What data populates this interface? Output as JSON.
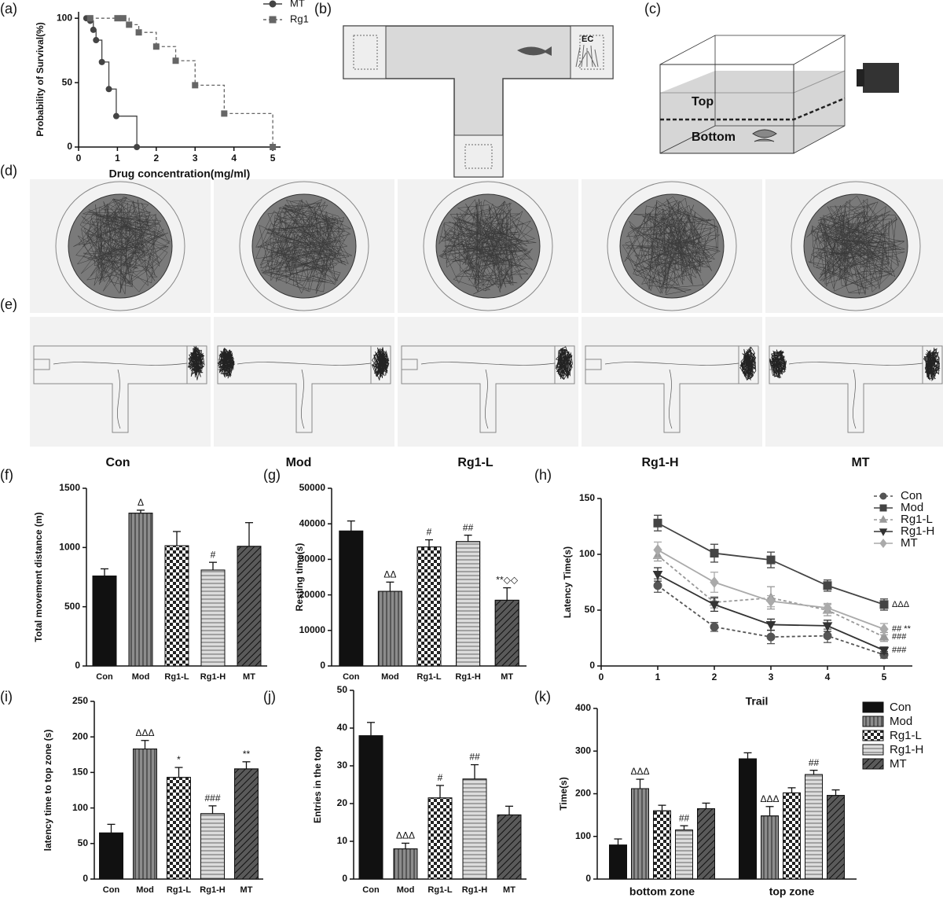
{
  "panels": {
    "b": "(b)",
    "c": "(c)",
    "d": "(d)",
    "e": "(e)"
  },
  "maze_label": "EC",
  "tank_labels": [
    "Top",
    "Bottom"
  ],
  "groups": [
    "Con",
    "Mod",
    "Rg1-L",
    "Rg1-H",
    "MT"
  ],
  "chart_data": [
    {
      "label": "(a)",
      "type": "line",
      "step": true,
      "xlabel": "Drug concentration(mg/ml)",
      "ylabel": "Probability of Survival(%)",
      "xlim": [
        0,
        5.2
      ],
      "xticks": [
        0,
        1,
        2,
        3,
        4,
        5
      ],
      "ylim": [
        0,
        105
      ],
      "yticks": [
        0,
        50,
        100
      ],
      "legend": "top-right",
      "series": [
        {
          "name": "MT",
          "color": "#444444",
          "marker": "circle",
          "dashed": false,
          "x": [
            0.2,
            0.3,
            0.38,
            0.45,
            0.6,
            0.78,
            0.97,
            1.5
          ],
          "values": [
            100,
            98,
            91,
            83,
            66,
            45,
            24,
            0
          ]
        },
        {
          "name": "Rg1",
          "color": "#666666",
          "marker": "square",
          "dashed": true,
          "x": [
            0.3,
            1.0,
            1.15,
            1.3,
            1.55,
            2.0,
            2.5,
            3.0,
            3.75,
            5.0
          ],
          "values": [
            100,
            100,
            100,
            95,
            89,
            78,
            67,
            48,
            26,
            0
          ]
        }
      ]
    },
    {
      "label": "(f)",
      "type": "bar",
      "ylabel": "Total movement distance (m)",
      "ylim": [
        0,
        1500
      ],
      "yticks": [
        0,
        500,
        1000,
        1500
      ],
      "categories": [
        "Con",
        "Mod",
        "Rg1-L",
        "Rg1-H",
        "MT"
      ],
      "values": [
        760,
        1290,
        1015,
        810,
        1010
      ],
      "errors": [
        60,
        25,
        120,
        65,
        200
      ],
      "colors": [
        "#111111",
        "#8c8c8c",
        "#ffffff",
        "#dcdcdc",
        "#5a5a5a"
      ],
      "annotations": [
        {
          "index": 1,
          "text": "Δ"
        },
        {
          "index": 3,
          "text": "#"
        }
      ]
    },
    {
      "label": "(g)",
      "type": "bar",
      "ylabel": "Resting time(s)",
      "ylim": [
        0,
        50000
      ],
      "yticks": [
        0,
        10000,
        20000,
        30000,
        40000,
        50000
      ],
      "categories": [
        "Con",
        "Mod",
        "Rg1-L",
        "Rg1-H",
        "MT"
      ],
      "values": [
        38000,
        21000,
        33500,
        35000,
        18500
      ],
      "errors": [
        2800,
        2600,
        2000,
        1800,
        3500
      ],
      "colors": [
        "#111111",
        "#8c8c8c",
        "#ffffff",
        "#dcdcdc",
        "#5a5a5a"
      ],
      "annotations": [
        {
          "index": 1,
          "text": "ΔΔ"
        },
        {
          "index": 2,
          "text": "#"
        },
        {
          "index": 3,
          "text": "##"
        },
        {
          "index": 4,
          "text": "**◇◇"
        }
      ]
    },
    {
      "label": "(h)",
      "type": "line",
      "step": false,
      "xlabel": "Trail",
      "ylabel": "Latency Time(s)",
      "xlim": [
        0,
        5.5
      ],
      "xticks": [
        0,
        1,
        2,
        3,
        4,
        5
      ],
      "ylim": [
        0,
        150
      ],
      "yticks": [
        0,
        50,
        100,
        150
      ],
      "legend": "top-right",
      "x": [
        1,
        2,
        3,
        4,
        5
      ],
      "series": [
        {
          "name": "Con",
          "color": "#555555",
          "marker": "circle",
          "dashed": true,
          "values": [
            72,
            35,
            26,
            27,
            10
          ],
          "errors": [
            6,
            4,
            6,
            6,
            3
          ]
        },
        {
          "name": "Mod",
          "color": "#444444",
          "marker": "square",
          "dashed": false,
          "values": [
            128,
            101,
            95,
            72,
            55
          ],
          "errors": [
            7,
            8,
            7,
            5,
            5
          ]
        },
        {
          "name": "Rg1-L",
          "color": "#999999",
          "marker": "triangle",
          "dashed": true,
          "values": [
            99,
            57,
            61,
            50,
            26
          ],
          "errors": [
            5,
            5,
            10,
            5,
            4
          ]
        },
        {
          "name": "Rg1-H",
          "color": "#333333",
          "marker": "triangle-down",
          "dashed": false,
          "values": [
            82,
            55,
            37,
            36,
            14
          ],
          "errors": [
            6,
            6,
            5,
            5,
            3
          ]
        },
        {
          "name": "MT",
          "color": "#aaaaaa",
          "marker": "diamond",
          "dashed": false,
          "values": [
            104,
            75,
            58,
            52,
            33
          ],
          "errors": [
            7,
            9,
            5,
            4,
            5
          ]
        }
      ],
      "annotations": [
        {
          "series": 1,
          "index": 4,
          "text": "ΔΔΔ"
        },
        {
          "series": 4,
          "index": 4,
          "text": "## **"
        },
        {
          "series": 2,
          "index": 4,
          "text": "###"
        },
        {
          "series": 3,
          "index": 4,
          "text": "###"
        }
      ]
    },
    {
      "label": "(i)",
      "type": "bar",
      "ylabel": "latency time to top zone (s)",
      "ylim": [
        0,
        250
      ],
      "yticks": [
        0,
        50,
        100,
        150,
        200,
        250
      ],
      "categories": [
        "Con",
        "Mod",
        "Rg1-L",
        "Rg1-H",
        "MT"
      ],
      "values": [
        65,
        183,
        143,
        92,
        155
      ],
      "errors": [
        12,
        12,
        14,
        11,
        10
      ],
      "colors": [
        "#111111",
        "#8c8c8c",
        "#ffffff",
        "#dcdcdc",
        "#5a5a5a"
      ],
      "annotations": [
        {
          "index": 1,
          "text": "ΔΔΔ"
        },
        {
          "index": 2,
          "text": "*"
        },
        {
          "index": 3,
          "text": "###"
        },
        {
          "index": 4,
          "text": "**"
        }
      ]
    },
    {
      "label": "(j)",
      "type": "bar",
      "ylabel": "Entries in the top",
      "ylim": [
        0,
        50
      ],
      "yticks": [
        0,
        10,
        20,
        30,
        40,
        50
      ],
      "categories": [
        "Con",
        "Mod",
        "Rg1-L",
        "Rg1-H",
        "MT"
      ],
      "values": [
        38,
        8,
        21.5,
        26.5,
        17
      ],
      "errors": [
        3.5,
        1.5,
        3.3,
        3.8,
        2.3
      ],
      "colors": [
        "#111111",
        "#8c8c8c",
        "#ffffff",
        "#dcdcdc",
        "#5a5a5a"
      ],
      "annotations": [
        {
          "index": 1,
          "text": "ΔΔΔ"
        },
        {
          "index": 2,
          "text": "#"
        },
        {
          "index": 3,
          "text": "##"
        }
      ]
    },
    {
      "label": "(k)",
      "type": "grouped_bar",
      "ylabel": "Time(s)",
      "ylim": [
        0,
        400
      ],
      "yticks": [
        0,
        100,
        200,
        300,
        400
      ],
      "legend": "top-right",
      "categories": [
        "bottom zone",
        "top zone"
      ],
      "series": [
        {
          "name": "Con",
          "color": "#111111",
          "values": [
            80,
            282
          ],
          "errors": [
            14,
            14
          ]
        },
        {
          "name": "Mod",
          "color": "#8c8c8c",
          "values": [
            212,
            148
          ],
          "errors": [
            22,
            22
          ]
        },
        {
          "name": "Rg1-L",
          "color": "#ffffff",
          "values": [
            160,
            202
          ],
          "errors": [
            13,
            12
          ]
        },
        {
          "name": "Rg1-H",
          "color": "#dcdcdc",
          "values": [
            115,
            245
          ],
          "errors": [
            10,
            10
          ]
        },
        {
          "name": "MT",
          "color": "#5a5a5a",
          "values": [
            165,
            196
          ],
          "errors": [
            13,
            13
          ]
        }
      ],
      "annotations": [
        {
          "series": 1,
          "index": 0,
          "text": "ΔΔΔ"
        },
        {
          "series": 3,
          "index": 0,
          "text": "##"
        },
        {
          "series": 1,
          "index": 1,
          "text": "ΔΔΔ"
        },
        {
          "series": 3,
          "index": 1,
          "text": "##"
        }
      ]
    }
  ]
}
